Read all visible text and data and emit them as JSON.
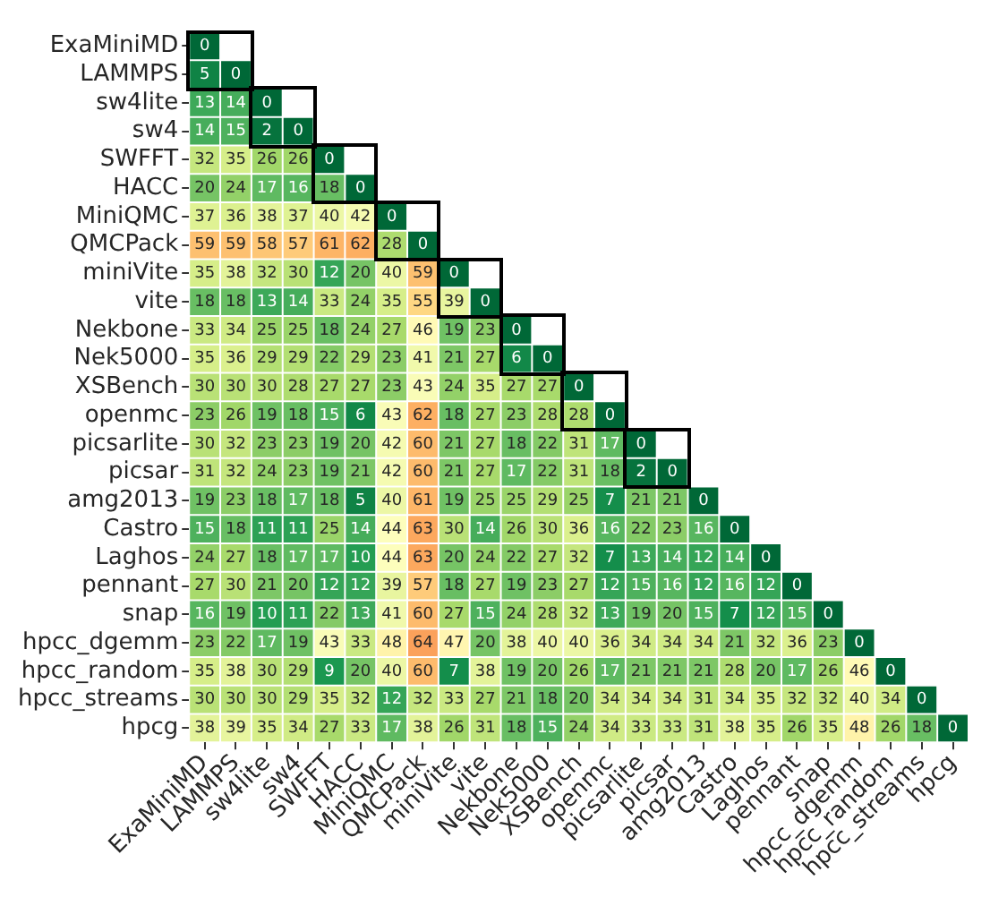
{
  "chart_data": {
    "type": "heatmap",
    "categories": [
      "ExaMiniMD",
      "LAMMPS",
      "sw4lite",
      "sw4",
      "SWFFT",
      "HACC",
      "MiniQMC",
      "QMCPack",
      "miniVite",
      "vite",
      "Nekbone",
      "Nek5000",
      "XSBench",
      "openmc",
      "picsarlite",
      "picsar",
      "amg2013",
      "Castro",
      "Laghos",
      "pennant",
      "snap",
      "hpcc_dgemm",
      "hpcc_random",
      "hpcc_streams",
      "hpcg"
    ],
    "y_categories": [
      "ExaMiniMD",
      "LAMMPS",
      "sw4lite",
      "sw4",
      "SWFFT",
      "HACC",
      "MiniQMC",
      "QMCPack",
      "miniVite",
      "vite",
      "Nekbone",
      "Nek5000",
      "XSBench",
      "openmc",
      "picsarlite",
      "picsar",
      "amg2013",
      "Castro",
      "Laghos",
      "pennant",
      "snap",
      "hpcc_dgemm",
      "hpcc_random",
      "hpcc_streams",
      "hpcg"
    ],
    "cells": [
      [
        0,
        null,
        null,
        null,
        null,
        null,
        null,
        null,
        null,
        null,
        null,
        null,
        null,
        null,
        null,
        null,
        null,
        null,
        null,
        null,
        null,
        null,
        null,
        null,
        null
      ],
      [
        5,
        0,
        null,
        null,
        null,
        null,
        null,
        null,
        null,
        null,
        null,
        null,
        null,
        null,
        null,
        null,
        null,
        null,
        null,
        null,
        null,
        null,
        null,
        null,
        null
      ],
      [
        13,
        14,
        0,
        null,
        null,
        null,
        null,
        null,
        null,
        null,
        null,
        null,
        null,
        null,
        null,
        null,
        null,
        null,
        null,
        null,
        null,
        null,
        null,
        null,
        null
      ],
      [
        14,
        15,
        2,
        0,
        null,
        null,
        null,
        null,
        null,
        null,
        null,
        null,
        null,
        null,
        null,
        null,
        null,
        null,
        null,
        null,
        null,
        null,
        null,
        null,
        null
      ],
      [
        32,
        35,
        26,
        26,
        0,
        null,
        null,
        null,
        null,
        null,
        null,
        null,
        null,
        null,
        null,
        null,
        null,
        null,
        null,
        null,
        null,
        null,
        null,
        null,
        null
      ],
      [
        20,
        24,
        17,
        16,
        18,
        0,
        null,
        null,
        null,
        null,
        null,
        null,
        null,
        null,
        null,
        null,
        null,
        null,
        null,
        null,
        null,
        null,
        null,
        null,
        null
      ],
      [
        37,
        36,
        38,
        37,
        40,
        42,
        0,
        null,
        null,
        null,
        null,
        null,
        null,
        null,
        null,
        null,
        null,
        null,
        null,
        null,
        null,
        null,
        null,
        null,
        null
      ],
      [
        59,
        59,
        58,
        57,
        61,
        62,
        28,
        0,
        null,
        null,
        null,
        null,
        null,
        null,
        null,
        null,
        null,
        null,
        null,
        null,
        null,
        null,
        null,
        null,
        null
      ],
      [
        35,
        38,
        32,
        30,
        12,
        20,
        40,
        59,
        0,
        null,
        null,
        null,
        null,
        null,
        null,
        null,
        null,
        null,
        null,
        null,
        null,
        null,
        null,
        null,
        null
      ],
      [
        18,
        18,
        13,
        14,
        33,
        24,
        35,
        55,
        39,
        0,
        null,
        null,
        null,
        null,
        null,
        null,
        null,
        null,
        null,
        null,
        null,
        null,
        null,
        null,
        null
      ],
      [
        33,
        34,
        25,
        25,
        18,
        24,
        27,
        46,
        19,
        23,
        0,
        null,
        null,
        null,
        null,
        null,
        null,
        null,
        null,
        null,
        null,
        null,
        null,
        null,
        null
      ],
      [
        35,
        36,
        29,
        29,
        22,
        29,
        23,
        41,
        21,
        27,
        6,
        0,
        null,
        null,
        null,
        null,
        null,
        null,
        null,
        null,
        null,
        null,
        null,
        null,
        null
      ],
      [
        30,
        30,
        30,
        28,
        27,
        27,
        23,
        43,
        24,
        35,
        27,
        27,
        0,
        null,
        null,
        null,
        null,
        null,
        null,
        null,
        null,
        null,
        null,
        null,
        null
      ],
      [
        23,
        26,
        19,
        18,
        15,
        6,
        43,
        62,
        18,
        27,
        23,
        28,
        28,
        0,
        null,
        null,
        null,
        null,
        null,
        null,
        null,
        null,
        null,
        null,
        null
      ],
      [
        30,
        32,
        23,
        23,
        19,
        20,
        42,
        60,
        21,
        27,
        18,
        22,
        31,
        17,
        0,
        null,
        null,
        null,
        null,
        null,
        null,
        null,
        null,
        null,
        null
      ],
      [
        31,
        32,
        24,
        23,
        19,
        21,
        42,
        60,
        21,
        27,
        17,
        22,
        31,
        18,
        2,
        0,
        null,
        null,
        null,
        null,
        null,
        null,
        null,
        null,
        null
      ],
      [
        19,
        23,
        18,
        17,
        18,
        5,
        40,
        61,
        19,
        25,
        25,
        29,
        25,
        7,
        21,
        21,
        0,
        null,
        null,
        null,
        null,
        null,
        null,
        null,
        null
      ],
      [
        15,
        18,
        11,
        11,
        25,
        14,
        44,
        63,
        30,
        14,
        26,
        30,
        36,
        16,
        22,
        23,
        16,
        0,
        null,
        null,
        null,
        null,
        null,
        null,
        null
      ],
      [
        24,
        27,
        18,
        17,
        17,
        10,
        44,
        63,
        20,
        24,
        22,
        27,
        32,
        7,
        13,
        14,
        12,
        14,
        0,
        null,
        null,
        null,
        null,
        null,
        null
      ],
      [
        27,
        30,
        21,
        20,
        12,
        12,
        39,
        57,
        18,
        27,
        19,
        23,
        27,
        12,
        15,
        16,
        12,
        16,
        12,
        0,
        null,
        null,
        null,
        null,
        null
      ],
      [
        16,
        19,
        10,
        11,
        22,
        13,
        41,
        60,
        27,
        15,
        24,
        28,
        32,
        13,
        19,
        20,
        15,
        7,
        12,
        15,
        0,
        null,
        null,
        null,
        null
      ],
      [
        23,
        22,
        17,
        19,
        43,
        33,
        48,
        64,
        47,
        20,
        38,
        40,
        40,
        36,
        34,
        34,
        34,
        21,
        32,
        36,
        23,
        0,
        null,
        null,
        null
      ],
      [
        35,
        38,
        30,
        29,
        9,
        20,
        40,
        60,
        7,
        38,
        19,
        20,
        26,
        17,
        21,
        21,
        21,
        28,
        20,
        17,
        26,
        46,
        0,
        null,
        null
      ],
      [
        30,
        30,
        30,
        29,
        35,
        32,
        12,
        32,
        33,
        27,
        21,
        18,
        20,
        34,
        34,
        34,
        31,
        34,
        35,
        32,
        32,
        40,
        34,
        0,
        null
      ],
      [
        38,
        39,
        35,
        34,
        27,
        33,
        17,
        38,
        26,
        31,
        18,
        15,
        24,
        34,
        33,
        33,
        31,
        38,
        35,
        26,
        35,
        48,
        26,
        18,
        0
      ]
    ],
    "grid": false,
    "data_labels": true
  }
}
